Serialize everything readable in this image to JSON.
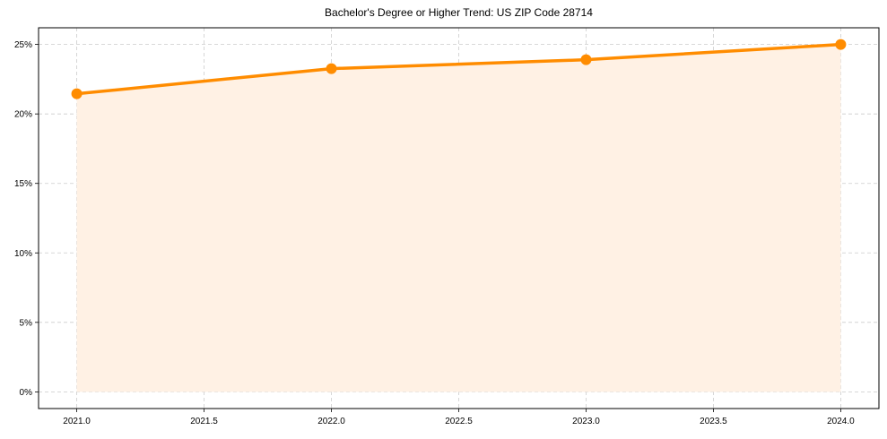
{
  "chart_data": {
    "type": "line",
    "title": "Bachelor's Degree or Higher Trend: US ZIP Code 28714",
    "xlabel": "",
    "ylabel": "",
    "x": [
      2021,
      2022,
      2023,
      2024
    ],
    "series": [
      {
        "name": "Bachelor's Degree or Higher",
        "values": [
          21.45,
          23.26,
          23.9,
          25.0
        ],
        "unit": "%"
      }
    ],
    "xlim": [
      2020.85,
      2024.15
    ],
    "ylim": [
      -1.2,
      26.2
    ],
    "x_ticks": [
      2021.0,
      2021.5,
      2022.0,
      2022.5,
      2023.0,
      2023.5,
      2024.0
    ],
    "x_tick_labels": [
      "2021.0",
      "2021.5",
      "2022.0",
      "2022.5",
      "2023.0",
      "2023.5",
      "2024.0"
    ],
    "y_ticks": [
      0,
      5,
      10,
      15,
      20,
      25
    ],
    "y_tick_labels": [
      "0%",
      "5%",
      "10%",
      "15%",
      "20%",
      "25%"
    ],
    "grid": true,
    "fill_under_line": true,
    "legend": null
  },
  "colors": {
    "line": "#FF8C00",
    "fill": "#FFF1E4",
    "grid": "#CCCCCC",
    "axis": "#000000"
  }
}
